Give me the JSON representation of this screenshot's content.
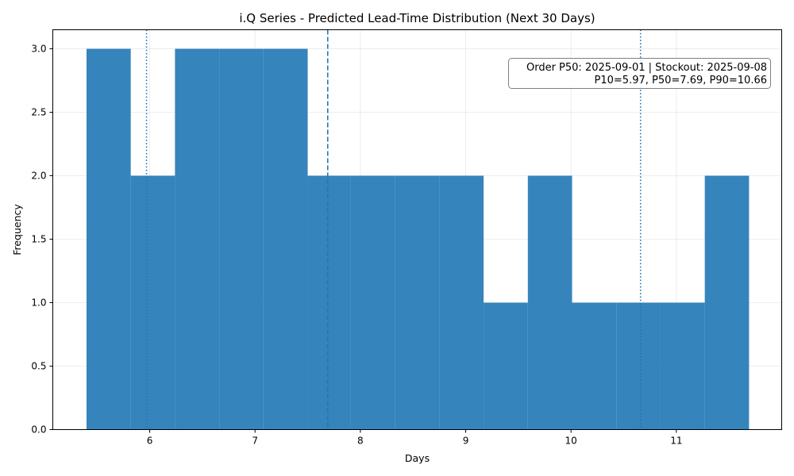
{
  "chart_data": {
    "type": "bar",
    "title": "i.Q Series - Predicted Lead-Time Distribution (Next 30 Days)",
    "xlabel": "Days",
    "ylabel": "Frequency",
    "xlim": [
      5.08,
      12.0
    ],
    "ylim": [
      0,
      3.15
    ],
    "xticks": [
      6,
      7,
      8,
      9,
      10,
      11
    ],
    "xtick_labels": [
      "6",
      "7",
      "8",
      "9",
      "10",
      "11"
    ],
    "yticks": [
      0,
      0.5,
      1.0,
      1.5,
      2.0,
      2.5,
      3.0
    ],
    "ytick_labels": [
      "0.0",
      "0.5",
      "1.0",
      "1.5",
      "2.0",
      "2.5",
      "3.0"
    ],
    "grid": true,
    "bar_color": "#3584bc",
    "line_color": "#1f77b4",
    "bins": [
      {
        "x0": 5.4,
        "x1": 5.82,
        "count": 3
      },
      {
        "x0": 5.82,
        "x1": 6.24,
        "count": 2
      },
      {
        "x0": 6.24,
        "x1": 6.66,
        "count": 3
      },
      {
        "x0": 6.66,
        "x1": 7.08,
        "count": 3
      },
      {
        "x0": 7.08,
        "x1": 7.5,
        "count": 3
      },
      {
        "x0": 7.5,
        "x1": 7.91,
        "count": 2
      },
      {
        "x0": 7.91,
        "x1": 8.33,
        "count": 2
      },
      {
        "x0": 8.33,
        "x1": 8.75,
        "count": 2
      },
      {
        "x0": 8.75,
        "x1": 9.17,
        "count": 2
      },
      {
        "x0": 9.17,
        "x1": 9.59,
        "count": 1
      },
      {
        "x0": 9.59,
        "x1": 10.01,
        "count": 2
      },
      {
        "x0": 10.01,
        "x1": 10.43,
        "count": 1
      },
      {
        "x0": 10.43,
        "x1": 10.85,
        "count": 1
      },
      {
        "x0": 10.85,
        "x1": 11.27,
        "count": 1
      },
      {
        "x0": 11.27,
        "x1": 11.69,
        "count": 2
      }
    ],
    "reference_lines": [
      {
        "x": 5.97,
        "style": "dotted"
      },
      {
        "x": 7.69,
        "style": "dashed"
      },
      {
        "x": 10.66,
        "style": "dotted"
      }
    ],
    "annotation": {
      "line1": "Order P50: 2025-09-01 | Stockout: 2025-09-08",
      "line2": "P10=5.97, P50=7.69, P90=10.66",
      "placement": "top-right"
    }
  }
}
